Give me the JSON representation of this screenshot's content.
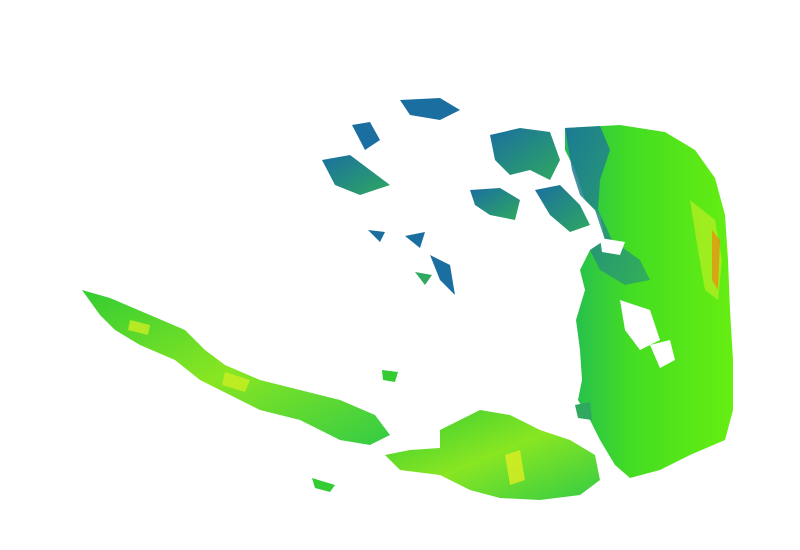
{
  "map": {
    "type": "radar-precipitation-overlay",
    "background_color": "#ffffff",
    "palette": {
      "light": "#1a6fa0",
      "moderate_low": "#2fa860",
      "moderate": "#33dd22",
      "moderate_high": "#99ee11",
      "heavy": "#ddee22",
      "intense": "#ee8811"
    }
  }
}
